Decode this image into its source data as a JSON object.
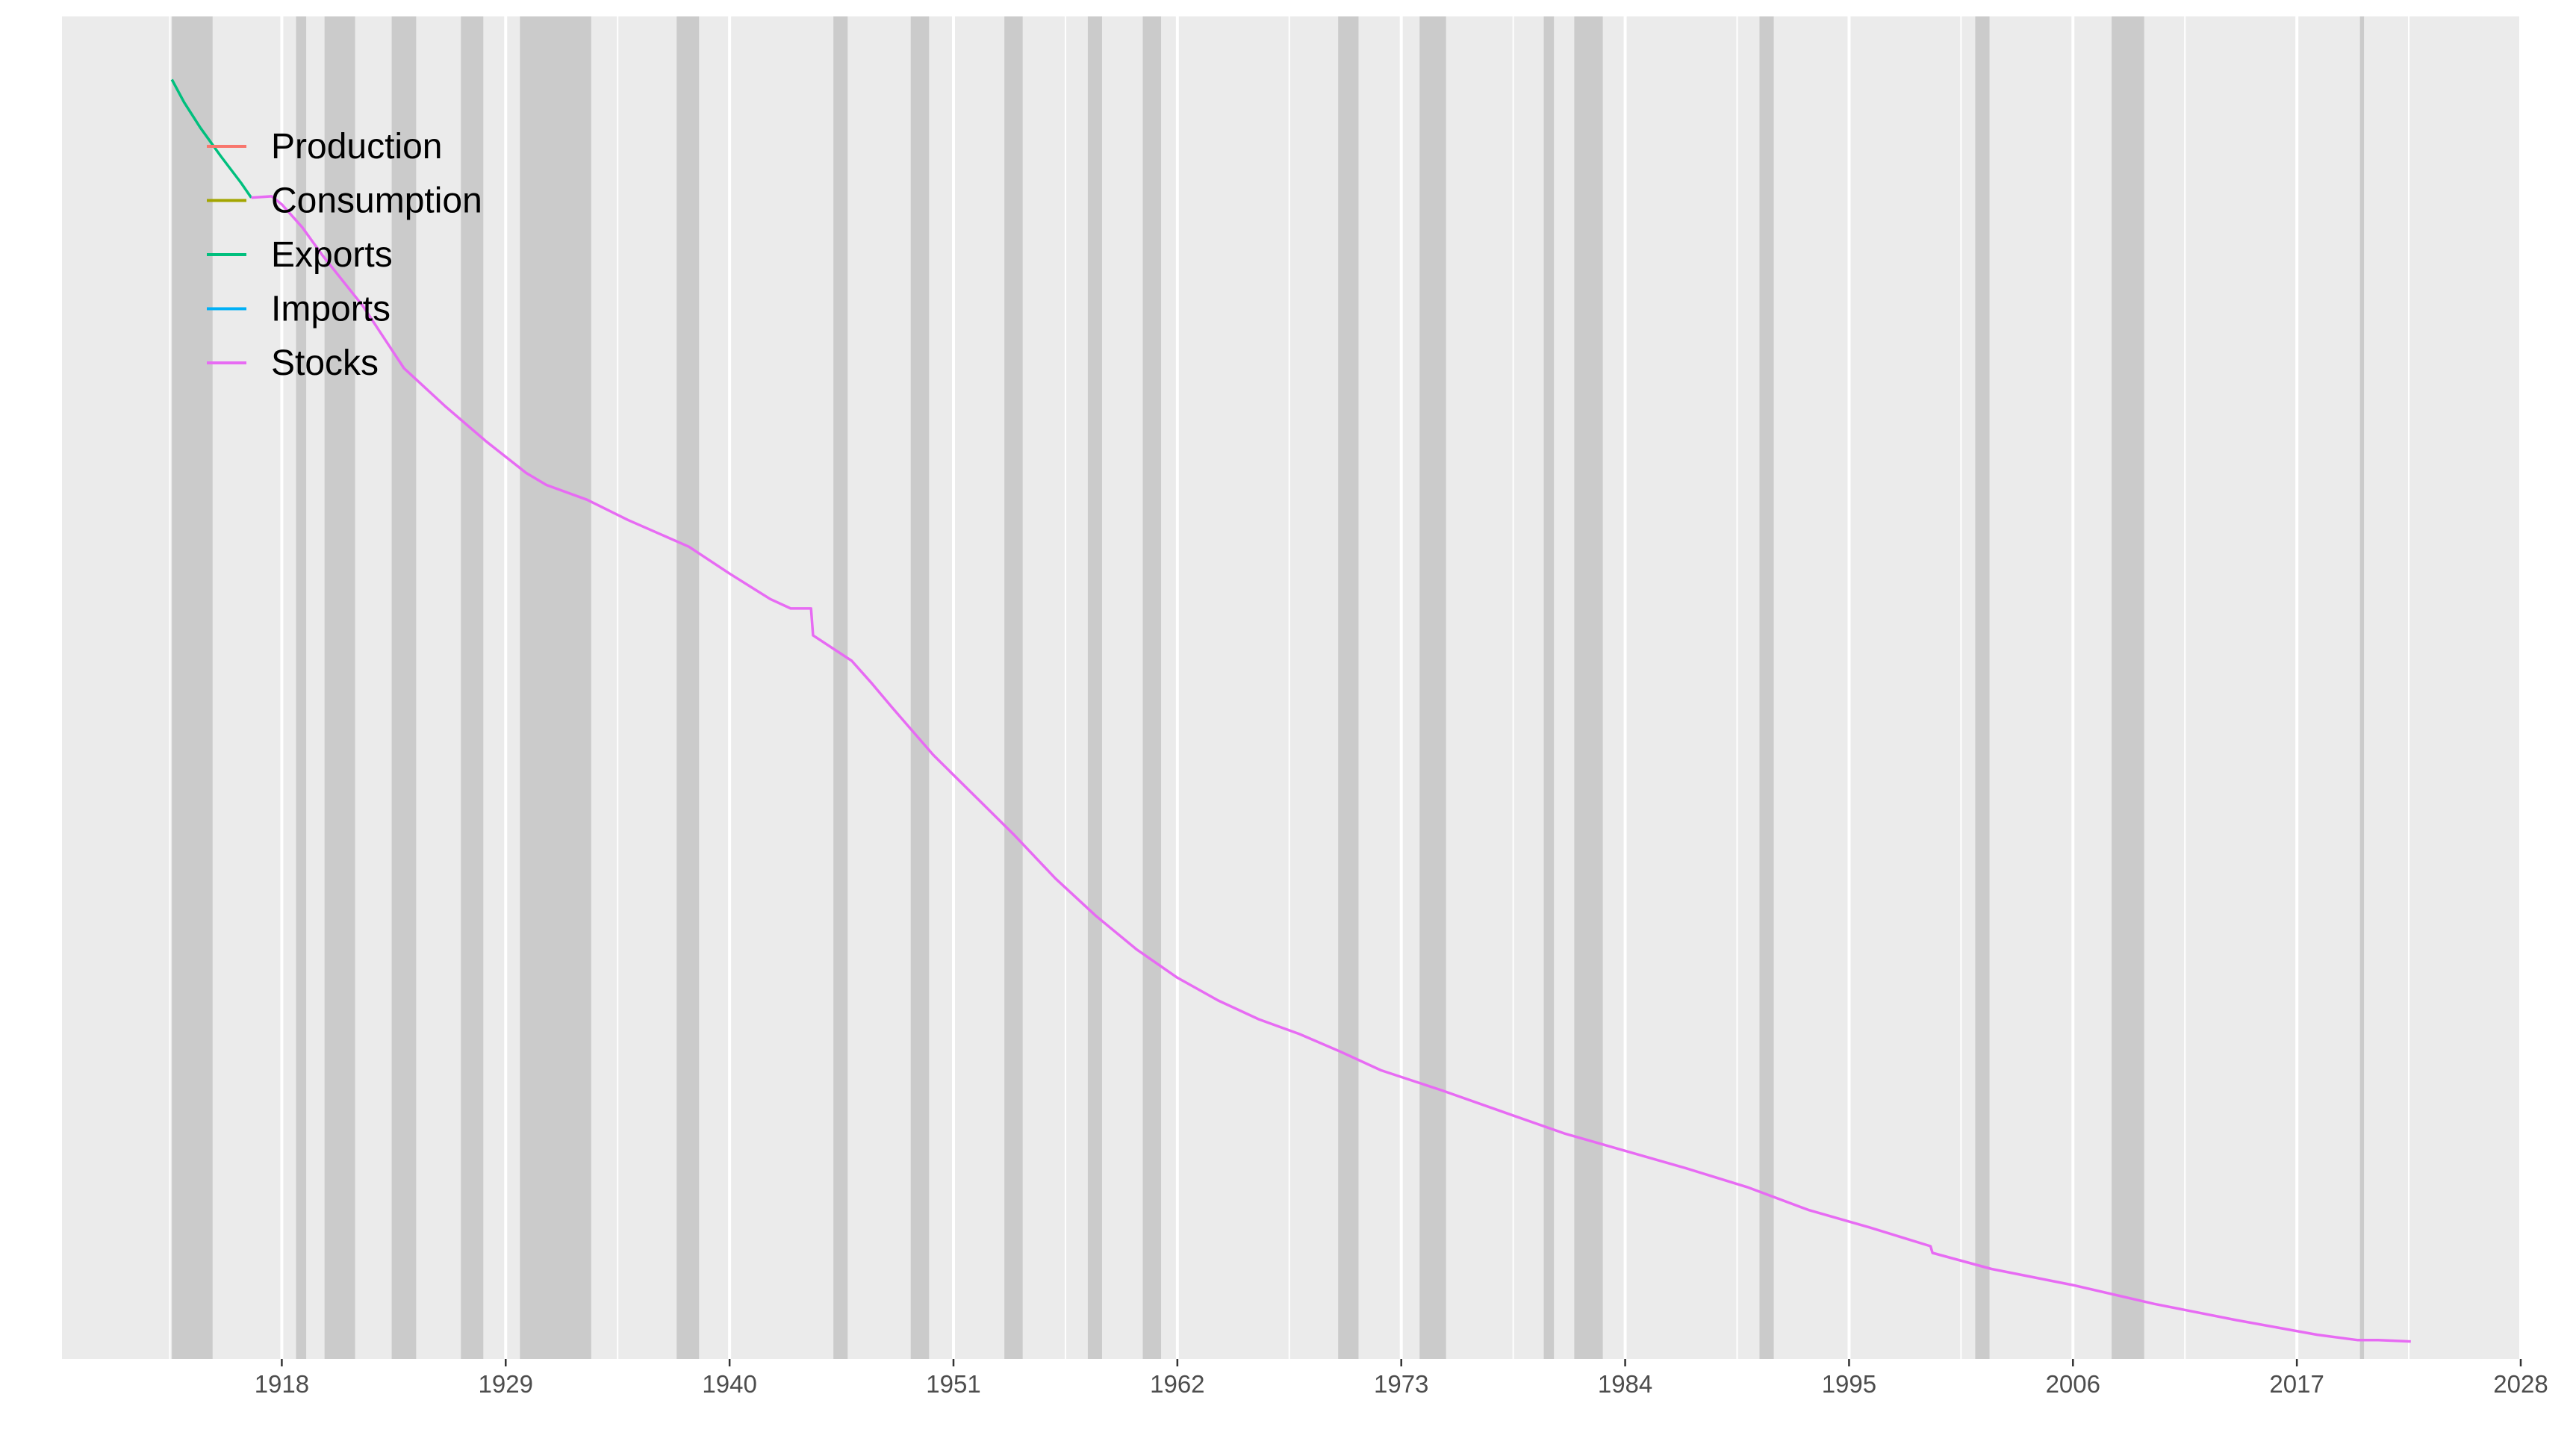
{
  "chart_data": {
    "type": "line",
    "title": "",
    "xlabel": "",
    "ylabel": "",
    "xlim": [
      1907.2,
      2028
    ],
    "ylim": [
      0,
      100
    ],
    "x_ticks": [
      1918,
      1929,
      1940,
      1951,
      1962,
      1973,
      1984,
      1995,
      2006,
      2017,
      2028
    ],
    "x_tick_labels": [
      "1918",
      "1929",
      "1940",
      "1951",
      "1962",
      "1973",
      "1984",
      "1995",
      "2006",
      "2017",
      "2028"
    ],
    "y_axis_labels_shown": false,
    "grid": true,
    "legend_position": "top-left",
    "colors": {
      "panel_background": "#ebebeb",
      "grid_line": "#ffffff",
      "recession_band": "#cbcbcb",
      "tick_label": "#4d4d4d"
    },
    "recession_bands": [
      [
        1912.6,
        1914.6
      ],
      [
        1918.7,
        1919.2
      ],
      [
        1920.1,
        1921.6
      ],
      [
        1923.4,
        1924.6
      ],
      [
        1926.8,
        1927.9
      ],
      [
        1929.7,
        1933.2
      ],
      [
        1937.4,
        1938.5
      ],
      [
        1945.1,
        1945.8
      ],
      [
        1948.9,
        1949.8
      ],
      [
        1953.5,
        1954.4
      ],
      [
        1957.6,
        1958.3
      ],
      [
        1960.3,
        1961.2
      ],
      [
        1969.9,
        1970.9
      ],
      [
        1973.9,
        1975.2
      ],
      [
        1980.0,
        1980.5
      ],
      [
        1981.5,
        1982.9
      ],
      [
        1990.6,
        1991.3
      ],
      [
        2001.2,
        2001.9
      ],
      [
        2007.9,
        2009.5
      ],
      [
        2020.1,
        2020.3
      ]
    ],
    "series": [
      {
        "name": "Production",
        "color": "#f8766d",
        "x": [],
        "y": []
      },
      {
        "name": "Consumption",
        "color": "#a3a500",
        "x": [],
        "y": []
      },
      {
        "name": "Exports",
        "color": "#00bf7d",
        "x": [
          1912.6,
          1913.2,
          1914.0,
          1915.0,
          1916.0,
          1916.5
        ],
        "y": [
          95.3,
          93.6,
          91.7,
          89.6,
          87.6,
          86.5
        ]
      },
      {
        "name": "Imports",
        "color": "#00b0f6",
        "x": [],
        "y": []
      },
      {
        "name": "Stocks",
        "color": "#e76bf3",
        "x": [
          1916.5,
          1917.5,
          1918.0,
          1919.0,
          1920.0,
          1922.0,
          1924.0,
          1926.0,
          1928.0,
          1930.0,
          1931.0,
          1933.0,
          1935.0,
          1938.0,
          1940.0,
          1942.0,
          1943.0,
          1944.0,
          1944.1,
          1946.0,
          1947.0,
          1948.0,
          1950.0,
          1952.0,
          1954.0,
          1956.0,
          1958.0,
          1960.0,
          1962.0,
          1964.0,
          1966.0,
          1968.0,
          1970.0,
          1972.0,
          1975.0,
          1978.0,
          1981.0,
          1984.0,
          1987.0,
          1990.0,
          1993.0,
          1996.0,
          1999.0,
          1999.1,
          2002.0,
          2006.0,
          2010.0,
          2014.0,
          2018.0,
          2020.0,
          2021.0,
          2022.6
        ],
        "y": [
          86.5,
          86.6,
          86.0,
          84.3,
          82.2,
          78.4,
          73.8,
          71.0,
          68.4,
          66.0,
          65.1,
          64.0,
          62.5,
          60.5,
          58.5,
          56.6,
          55.9,
          55.9,
          53.9,
          52.0,
          50.3,
          48.5,
          45.0,
          42.0,
          39.0,
          35.8,
          33.0,
          30.5,
          28.4,
          26.7,
          25.3,
          24.2,
          22.9,
          21.5,
          20.0,
          18.4,
          16.8,
          15.5,
          14.2,
          12.8,
          11.1,
          9.8,
          8.4,
          7.9,
          6.7,
          5.5,
          4.1,
          2.9,
          1.8,
          1.4,
          1.4,
          1.3
        ]
      }
    ]
  }
}
